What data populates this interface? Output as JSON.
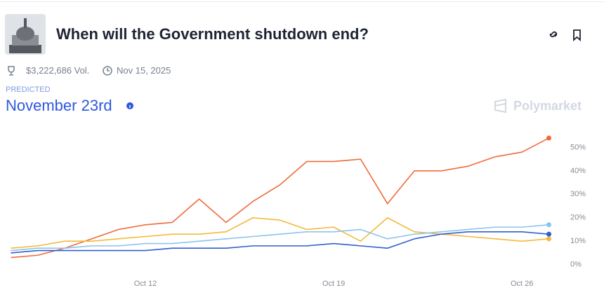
{
  "header": {
    "title": "When will the Government shutdown end?",
    "volume": "$3,222,686 Vol.",
    "end_date": "Nov 15, 2025",
    "predicted_label": "PREDICTED",
    "predicted_value": "November 23rd",
    "brand": "Polymarket"
  },
  "chart_data": {
    "type": "line",
    "x": [
      "Oct 7",
      "Oct 8",
      "Oct 9",
      "Oct 10",
      "Oct 11",
      "Oct 12",
      "Oct 13",
      "Oct 14",
      "Oct 15",
      "Oct 16",
      "Oct 17",
      "Oct 18",
      "Oct 19",
      "Oct 20",
      "Oct 21",
      "Oct 22",
      "Oct 23",
      "Oct 24",
      "Oct 25",
      "Oct 26",
      "Oct 27"
    ],
    "xticks": [
      "Oct 12",
      "Oct 19",
      "Oct 26"
    ],
    "ylim": [
      -4,
      57
    ],
    "yticks": [
      {
        "value": 0,
        "label": "0%"
      },
      {
        "value": 10,
        "label": "10%"
      },
      {
        "value": 20,
        "label": "20%"
      },
      {
        "value": 30,
        "label": "30%"
      },
      {
        "value": 40,
        "label": "40%"
      },
      {
        "value": 50,
        "label": "50%"
      }
    ],
    "grid": false,
    "series": [
      {
        "color": "#ef6a3a",
        "values": [
          3,
          4,
          7,
          11,
          15,
          17,
          18,
          28,
          18,
          27,
          34,
          44,
          44,
          45,
          26,
          40,
          40,
          42,
          46,
          48,
          54
        ]
      },
      {
        "color": "#f4b93a",
        "values": [
          7,
          8,
          10,
          10,
          11,
          12,
          13,
          13,
          14,
          20,
          19,
          15,
          16,
          10,
          20,
          14,
          13,
          12,
          11,
          10,
          11
        ]
      },
      {
        "color": "#8cc3ee",
        "values": [
          6,
          7,
          7,
          8,
          8,
          9,
          9,
          10,
          11,
          12,
          13,
          14,
          14,
          15,
          11,
          13,
          14,
          15,
          16,
          16,
          17
        ]
      },
      {
        "color": "#2f5fd0",
        "values": [
          5,
          6,
          6,
          6,
          6,
          6,
          7,
          7,
          7,
          8,
          8,
          8,
          9,
          8,
          7,
          11,
          13,
          14,
          14,
          14,
          13
        ]
      }
    ]
  }
}
